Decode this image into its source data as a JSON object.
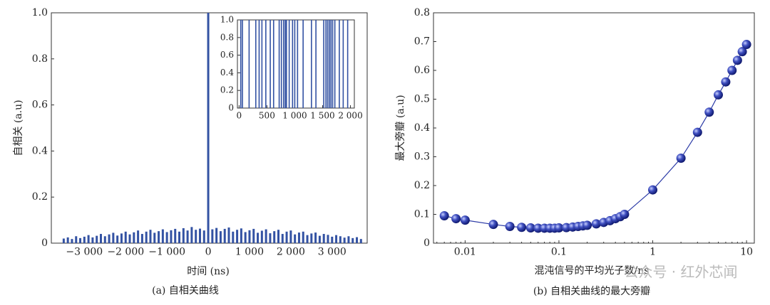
{
  "chart_data": [
    {
      "type": "bar",
      "caption": "(a) 自相关曲线",
      "xlabel": "时间 (ns)",
      "ylabel": "自相关 (a.u)",
      "x": [
        -3500,
        -3400,
        -3300,
        -3200,
        -3100,
        -3000,
        -2900,
        -2800,
        -2700,
        -2600,
        -2500,
        -2400,
        -2300,
        -2200,
        -2100,
        -2000,
        -1900,
        -1800,
        -1700,
        -1600,
        -1500,
        -1400,
        -1300,
        -1200,
        -1100,
        -1000,
        -900,
        -800,
        -700,
        -600,
        -500,
        -400,
        -300,
        -200,
        -100,
        0,
        100,
        200,
        300,
        400,
        500,
        600,
        700,
        800,
        900,
        1000,
        1100,
        1200,
        1300,
        1400,
        1500,
        1600,
        1700,
        1800,
        1900,
        2000,
        2100,
        2200,
        2300,
        2400,
        2500,
        2600,
        2700,
        2800,
        2900,
        3000,
        3100,
        3200,
        3300,
        3400,
        3500,
        3600,
        3700
      ],
      "values": [
        0.02,
        0.025,
        0.018,
        0.03,
        0.022,
        0.028,
        0.035,
        0.025,
        0.032,
        0.04,
        0.03,
        0.038,
        0.045,
        0.033,
        0.042,
        0.05,
        0.038,
        0.047,
        0.055,
        0.04,
        0.05,
        0.058,
        0.045,
        0.052,
        0.06,
        0.048,
        0.056,
        0.062,
        0.05,
        0.065,
        0.055,
        0.07,
        0.058,
        0.063,
        0.055,
        1,
        0.06,
        0.066,
        0.052,
        0.062,
        0.068,
        0.05,
        0.058,
        0.064,
        0.048,
        0.056,
        0.062,
        0.045,
        0.054,
        0.06,
        0.043,
        0.052,
        0.058,
        0.04,
        0.05,
        0.055,
        0.038,
        0.046,
        0.05,
        0.035,
        0.042,
        0.046,
        0.032,
        0.04,
        0.036,
        0.028,
        0.035,
        0.03,
        0.024,
        0.03,
        0.022,
        0.026,
        0.018
      ],
      "color": "#3352a3",
      "xlim": [
        -3800,
        3850
      ],
      "ylim": [
        0,
        1
      ],
      "xticks": [
        {
          "value": -3000,
          "label": "−3 000"
        },
        {
          "value": -2000,
          "label": "−2 000"
        },
        {
          "value": -1000,
          "label": "−1 000"
        },
        0,
        {
          "value": 1000,
          "label": "1 000"
        },
        {
          "value": 2000,
          "label": "2 000"
        },
        {
          "value": 3000,
          "label": "3 000"
        }
      ],
      "yticks": [
        0,
        0.2,
        0.4,
        0.6,
        0.8,
        {
          "value": 1,
          "label": "1.0"
        }
      ],
      "inset": {
        "type": "bar",
        "x": [
          30,
          60,
          180,
          300,
          360,
          410,
          480,
          560,
          620,
          720,
          760,
          800,
          830,
          850,
          900,
          960,
          1000,
          1050,
          1150,
          1300,
          1380,
          1520,
          1560,
          1590,
          1620,
          1650,
          1680,
          1720,
          1800,
          1870,
          1950
        ],
        "values": [
          1,
          1,
          1,
          1,
          1,
          1,
          1,
          1,
          1,
          1,
          1,
          1,
          1,
          1,
          1,
          1,
          1,
          1,
          1,
          1,
          1,
          1,
          1,
          1,
          1,
          1,
          1,
          1,
          1,
          1,
          1
        ],
        "color": "#3352a3",
        "xlim": [
          -30,
          2070
        ],
        "ylim": [
          0,
          1
        ],
        "xticks": [
          0,
          500,
          {
            "value": 1000,
            "label": "1 000"
          },
          {
            "value": 1500,
            "label": "1 500"
          },
          {
            "value": 2000,
            "label": "2 000"
          }
        ],
        "yticks": [
          0,
          0.2,
          0.4,
          0.6,
          0.8,
          {
            "value": 1,
            "label": "1.0"
          }
        ]
      }
    },
    {
      "type": "scatter",
      "caption": "(b) 自相关曲线的最大旁瓣",
      "xlabel": "混沌信号的平均光子数/ns",
      "ylabel": "最大旁瓣 (a.u)",
      "x": [
        0.006,
        0.008,
        0.01,
        0.02,
        0.03,
        0.04,
        0.05,
        0.06,
        0.07,
        0.08,
        0.09,
        0.1,
        0.12,
        0.14,
        0.16,
        0.18,
        0.2,
        0.25,
        0.3,
        0.35,
        0.4,
        0.45,
        0.5,
        1,
        2,
        3,
        4,
        5,
        6,
        7,
        8,
        9,
        10
      ],
      "values": [
        0.095,
        0.085,
        0.08,
        0.065,
        0.058,
        0.055,
        0.053,
        0.052,
        0.052,
        0.052,
        0.052,
        0.053,
        0.054,
        0.056,
        0.058,
        0.06,
        0.062,
        0.067,
        0.072,
        0.078,
        0.085,
        0.092,
        0.1,
        0.185,
        0.295,
        0.385,
        0.455,
        0.515,
        0.56,
        0.6,
        0.635,
        0.665,
        0.69
      ],
      "color": "#2b3aa6",
      "xscale": "log",
      "fit_line": true,
      "xlim": [
        0.0046,
        12.1
      ],
      "ylim": [
        0,
        0.8
      ],
      "xticks": [
        0.01,
        0.1,
        1,
        10
      ],
      "yticks": [
        0,
        0.1,
        0.2,
        0.3,
        0.4,
        0.5,
        0.6,
        0.7,
        0.8
      ]
    }
  ],
  "watermark": "公众号 · 红外芯闻"
}
